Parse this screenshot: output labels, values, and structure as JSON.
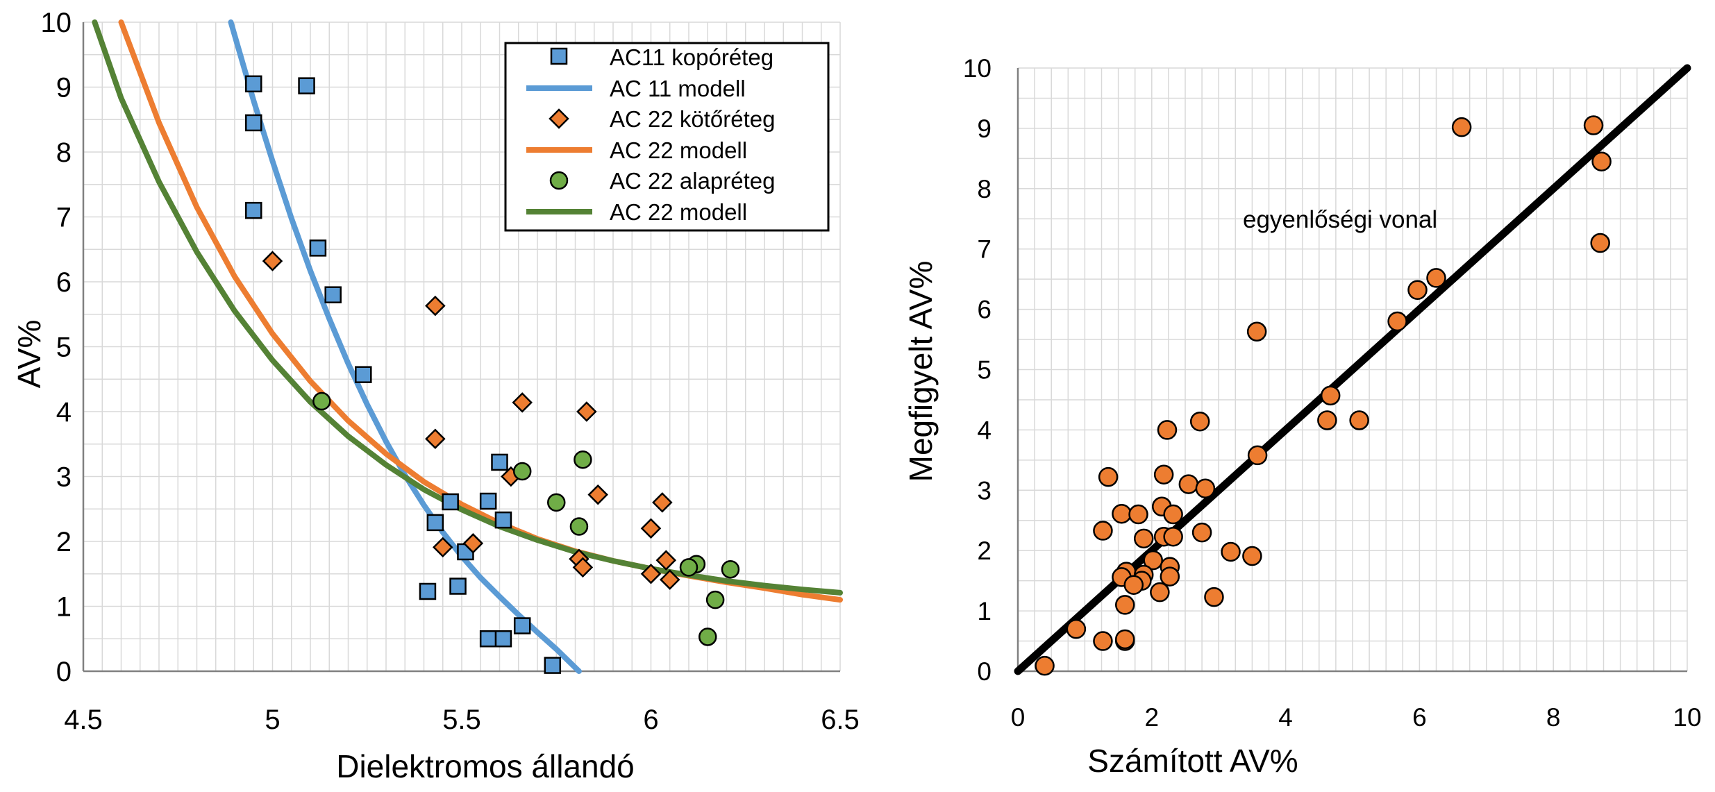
{
  "colors": {
    "grid": "#d9d9d9",
    "axis": "#808080",
    "ac11_marker": "#5b9bd5",
    "ac11_line": "#5b9bd5",
    "ac22_marker": "#ed7d31",
    "ac22_line": "#ed7d31",
    "base_marker": "#70ad47",
    "base_line": "#548235",
    "identity_line": "#000000",
    "observed_marker": "#ed7d31"
  },
  "chart_data": [
    {
      "type": "scatter",
      "xlabel": "Dielektromos állandó",
      "ylabel": "AV%",
      "xlim": [
        4.5,
        6.5
      ],
      "ylim": [
        0,
        10
      ],
      "x_ticks": [
        "4.5",
        "5",
        "5.5",
        "6",
        "6.5"
      ],
      "y_ticks": [
        "0",
        "1",
        "2",
        "3",
        "4",
        "5",
        "6",
        "7",
        "8",
        "9",
        "10"
      ],
      "grid": true,
      "legend_position": "top-right",
      "series": [
        {
          "name": "AC11 kopóréteg",
          "kind": "points",
          "marker": "square",
          "points": [
            [
              4.95,
              9.05
            ],
            [
              5.09,
              9.02
            ],
            [
              4.95,
              8.45
            ],
            [
              4.95,
              7.1
            ],
            [
              5.12,
              6.52
            ],
            [
              5.16,
              5.8
            ],
            [
              5.24,
              4.57
            ],
            [
              5.6,
              3.22
            ],
            [
              5.47,
              2.61
            ],
            [
              5.57,
              2.62
            ],
            [
              5.61,
              2.33
            ],
            [
              5.43,
              2.29
            ],
            [
              5.51,
              1.84
            ],
            [
              5.49,
              1.31
            ],
            [
              5.41,
              1.23
            ],
            [
              5.66,
              0.7
            ],
            [
              5.57,
              0.5
            ],
            [
              5.61,
              0.5
            ],
            [
              5.74,
              0.09
            ]
          ]
        },
        {
          "name": "AC 11 modell",
          "kind": "line",
          "points": [
            [
              4.89,
              10
            ],
            [
              4.95,
              8.79
            ],
            [
              5.0,
              7.86
            ],
            [
              5.05,
              6.98
            ],
            [
              5.1,
              6.17
            ],
            [
              5.15,
              5.43
            ],
            [
              5.2,
              4.74
            ],
            [
              5.25,
              4.11
            ],
            [
              5.3,
              3.54
            ],
            [
              5.35,
              3.02
            ],
            [
              5.4,
              2.56
            ],
            [
              5.45,
              2.14
            ],
            [
              5.5,
              1.77
            ],
            [
              5.55,
              1.44
            ],
            [
              5.6,
              1.15
            ],
            [
              5.65,
              0.87
            ],
            [
              5.7,
              0.6
            ],
            [
              5.75,
              0.34
            ],
            [
              5.81,
              0.0
            ]
          ]
        },
        {
          "name": "AC 22 kötőréteg",
          "kind": "points",
          "marker": "diamond",
          "points": [
            [
              5.0,
              6.32
            ],
            [
              5.43,
              5.63
            ],
            [
              5.66,
              4.14
            ],
            [
              5.83,
              4.0
            ],
            [
              5.43,
              3.58
            ],
            [
              5.63,
              3.0
            ],
            [
              5.86,
              2.72
            ],
            [
              6.03,
              2.6
            ],
            [
              6.0,
              2.2
            ],
            [
              5.81,
              1.73
            ],
            [
              5.82,
              1.6
            ],
            [
              5.53,
              1.97
            ],
            [
              5.45,
              1.91
            ],
            [
              6.0,
              1.5
            ],
            [
              6.04,
              1.71
            ],
            [
              6.05,
              1.41
            ]
          ]
        },
        {
          "name": "AC 22 modell",
          "kind": "line",
          "points": [
            [
              4.6,
              10
            ],
            [
              4.7,
              8.45
            ],
            [
              4.8,
              7.15
            ],
            [
              4.9,
              6.08
            ],
            [
              5.0,
              5.2
            ],
            [
              5.1,
              4.47
            ],
            [
              5.2,
              3.86
            ],
            [
              5.3,
              3.35
            ],
            [
              5.4,
              2.92
            ],
            [
              5.5,
              2.57
            ],
            [
              5.6,
              2.28
            ],
            [
              5.7,
              2.04
            ],
            [
              5.8,
              1.85
            ],
            [
              5.9,
              1.7
            ],
            [
              6.0,
              1.58
            ],
            [
              6.1,
              1.47
            ],
            [
              6.2,
              1.37
            ],
            [
              6.3,
              1.28
            ],
            [
              6.4,
              1.18
            ],
            [
              6.5,
              1.1
            ]
          ]
        },
        {
          "name": "AC 22 alapréteg",
          "kind": "points",
          "marker": "circle",
          "points": [
            [
              5.13,
              4.16
            ],
            [
              5.82,
              3.26
            ],
            [
              5.66,
              3.08
            ],
            [
              5.75,
              2.6
            ],
            [
              5.81,
              2.23
            ],
            [
              6.12,
              1.65
            ],
            [
              6.1,
              1.6
            ],
            [
              6.21,
              1.57
            ],
            [
              6.17,
              1.1
            ],
            [
              6.15,
              0.53
            ]
          ]
        },
        {
          "name": "AC 22 modell",
          "kind": "line",
          "points": [
            [
              4.53,
              10
            ],
            [
              4.6,
              8.83
            ],
            [
              4.7,
              7.54
            ],
            [
              4.8,
              6.46
            ],
            [
              4.9,
              5.55
            ],
            [
              5.0,
              4.79
            ],
            [
              5.1,
              4.15
            ],
            [
              5.2,
              3.62
            ],
            [
              5.3,
              3.18
            ],
            [
              5.4,
              2.8
            ],
            [
              5.5,
              2.49
            ],
            [
              5.6,
              2.23
            ],
            [
              5.7,
              2.02
            ],
            [
              5.8,
              1.84
            ],
            [
              5.9,
              1.7
            ],
            [
              6.0,
              1.58
            ],
            [
              6.1,
              1.48
            ],
            [
              6.2,
              1.39
            ],
            [
              6.3,
              1.32
            ],
            [
              6.4,
              1.26
            ],
            [
              6.5,
              1.21
            ]
          ]
        }
      ]
    },
    {
      "type": "scatter",
      "xlabel": "Számított AV%",
      "ylabel": "Megfigyelt AV%",
      "xlim": [
        0,
        10
      ],
      "ylim": [
        0,
        10
      ],
      "x_ticks": [
        "0",
        "2",
        "4",
        "6",
        "8",
        "10"
      ],
      "y_ticks": [
        "0",
        "1",
        "2",
        "3",
        "4",
        "5",
        "6",
        "7",
        "8",
        "9",
        "10"
      ],
      "grid": true,
      "annotation": "egyenlőségi vonal",
      "identity_line": [
        [
          0,
          0
        ],
        [
          10,
          10
        ]
      ],
      "points": [
        [
          8.6,
          9.05
        ],
        [
          6.63,
          9.02
        ],
        [
          8.72,
          8.45
        ],
        [
          8.7,
          7.1
        ],
        [
          6.25,
          6.52
        ],
        [
          5.97,
          6.32
        ],
        [
          5.67,
          5.8
        ],
        [
          3.57,
          5.63
        ],
        [
          4.67,
          4.57
        ],
        [
          4.62,
          4.16
        ],
        [
          5.1,
          4.16
        ],
        [
          2.72,
          4.14
        ],
        [
          2.23,
          4.0
        ],
        [
          3.58,
          3.58
        ],
        [
          2.18,
          3.26
        ],
        [
          1.35,
          3.22
        ],
        [
          2.55,
          3.1
        ],
        [
          2.8,
          3.03
        ],
        [
          2.15,
          2.73
        ],
        [
          1.55,
          2.61
        ],
        [
          1.8,
          2.6
        ],
        [
          2.32,
          2.6
        ],
        [
          1.27,
          2.33
        ],
        [
          2.75,
          2.3
        ],
        [
          2.18,
          2.23
        ],
        [
          2.32,
          2.23
        ],
        [
          1.88,
          2.2
        ],
        [
          3.18,
          1.98
        ],
        [
          3.5,
          1.91
        ],
        [
          2.02,
          1.84
        ],
        [
          2.27,
          1.73
        ],
        [
          1.62,
          1.65
        ],
        [
          1.88,
          1.6
        ],
        [
          2.27,
          1.57
        ],
        [
          1.55,
          1.56
        ],
        [
          1.85,
          1.5
        ],
        [
          1.73,
          1.43
        ],
        [
          2.12,
          1.31
        ],
        [
          2.93,
          1.23
        ],
        [
          1.6,
          1.1
        ],
        [
          0.87,
          0.7
        ],
        [
          1.27,
          0.5
        ],
        [
          1.6,
          0.5
        ],
        [
          1.6,
          0.53
        ],
        [
          0.4,
          0.09
        ]
      ]
    }
  ]
}
